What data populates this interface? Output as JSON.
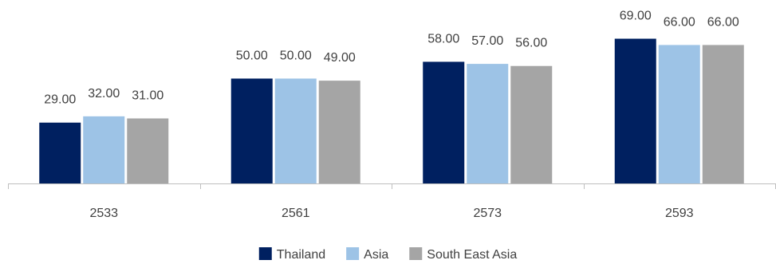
{
  "chart_data": {
    "type": "bar",
    "categories": [
      "2533",
      "2561",
      "2573",
      "2593"
    ],
    "series": [
      {
        "name": "Thailand",
        "color": "#002060",
        "values": [
          29.0,
          50.0,
          58.0,
          69.0
        ]
      },
      {
        "name": "Asia",
        "color": "#9dc3e6",
        "values": [
          32.0,
          50.0,
          57.0,
          66.0
        ]
      },
      {
        "name": "South East Asia",
        "color": "#a5a5a5",
        "values": [
          31.0,
          49.0,
          56.0,
          66.0
        ]
      }
    ],
    "value_format": "0.00",
    "ylim": [
      0,
      75
    ],
    "grid": false,
    "legend_position": "bottom",
    "axis_color": "#bfbfbf",
    "text_color": "#404040"
  }
}
